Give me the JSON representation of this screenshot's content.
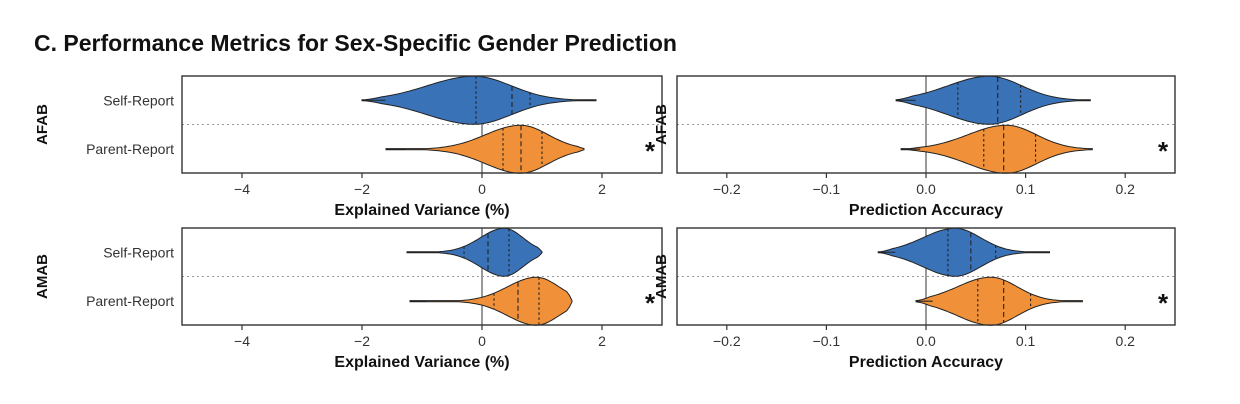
{
  "figure": {
    "title": "C. Performance Metrics for Sex-Specific Gender Prediction"
  },
  "colors": {
    "self_report": "#3a72b8",
    "parent_report": "#f0913a",
    "axis": "#333333",
    "ref_line": "#555555"
  },
  "chart_data": [
    {
      "type": "violin",
      "group": "AFAB",
      "xlabel": "Explained Variance (%)",
      "xlim": [
        -5,
        3
      ],
      "xticks": [
        -4,
        -2,
        0,
        2
      ],
      "xtick_labels": [
        "−4",
        "−2",
        "0",
        "2"
      ],
      "grid": false,
      "categories": [
        "Self-Report",
        "Parent-Report"
      ],
      "series": [
        {
          "name": "Self-Report",
          "min": -2.0,
          "max": 1.9,
          "q1": -0.1,
          "median": 0.5,
          "q3": 0.8,
          "color": "#3a72b8"
        },
        {
          "name": "Parent-Report",
          "min": -1.6,
          "max": 1.7,
          "q1": 0.35,
          "median": 0.65,
          "q3": 1.0,
          "color": "#f0913a"
        }
      ],
      "significance": "*"
    },
    {
      "type": "violin",
      "group": "AFAB",
      "xlabel": "Prediction Accuracy",
      "xlim": [
        -0.25,
        0.25
      ],
      "xticks": [
        -0.2,
        -0.1,
        0.0,
        0.1,
        0.2
      ],
      "xtick_labels": [
        "−0.2",
        "−0.1",
        "0.0",
        "0.1",
        "0.2"
      ],
      "grid": false,
      "categories": [
        "Self-Report",
        "Parent-Report"
      ],
      "series": [
        {
          "name": "Self-Report",
          "min": -0.03,
          "max": 0.165,
          "q1": 0.032,
          "median": 0.072,
          "q3": 0.095,
          "color": "#3a72b8"
        },
        {
          "name": "Parent-Report",
          "min": -0.025,
          "max": 0.167,
          "q1": 0.058,
          "median": 0.078,
          "q3": 0.11,
          "color": "#f0913a"
        }
      ],
      "significance": "*"
    },
    {
      "type": "violin",
      "group": "AMAB",
      "xlabel": "Explained Variance (%)",
      "xlim": [
        -5,
        3
      ],
      "xticks": [
        -4,
        -2,
        0,
        2
      ],
      "xtick_labels": [
        "−4",
        "−2",
        "0",
        "2"
      ],
      "grid": false,
      "categories": [
        "Self-Report",
        "Parent-Report"
      ],
      "series": [
        {
          "name": "Self-Report",
          "min": -1.25,
          "max": 1.0,
          "q1": -0.3,
          "median": 0.1,
          "q3": 0.45,
          "color": "#3a72b8"
        },
        {
          "name": "Parent-Report",
          "min": -1.2,
          "max": 1.5,
          "q1": 0.2,
          "median": 0.6,
          "q3": 0.95,
          "color": "#f0913a"
        }
      ],
      "significance": "*"
    },
    {
      "type": "violin",
      "group": "AMAB",
      "xlabel": "Prediction Accuracy",
      "xlim": [
        -0.25,
        0.25
      ],
      "xticks": [
        -0.2,
        -0.1,
        0.0,
        0.1,
        0.2
      ],
      "xtick_labels": [
        "−0.2",
        "−0.1",
        "0.0",
        "0.1",
        "0.2"
      ],
      "grid": false,
      "categories": [
        "Self-Report",
        "Parent-Report"
      ],
      "series": [
        {
          "name": "Self-Report",
          "min": -0.048,
          "max": 0.124,
          "q1": 0.022,
          "median": 0.045,
          "q3": 0.07,
          "color": "#3a72b8"
        },
        {
          "name": "Parent-Report",
          "min": -0.01,
          "max": 0.157,
          "q1": 0.052,
          "median": 0.078,
          "q3": 0.105,
          "color": "#f0913a"
        }
      ],
      "significance": "*"
    }
  ]
}
